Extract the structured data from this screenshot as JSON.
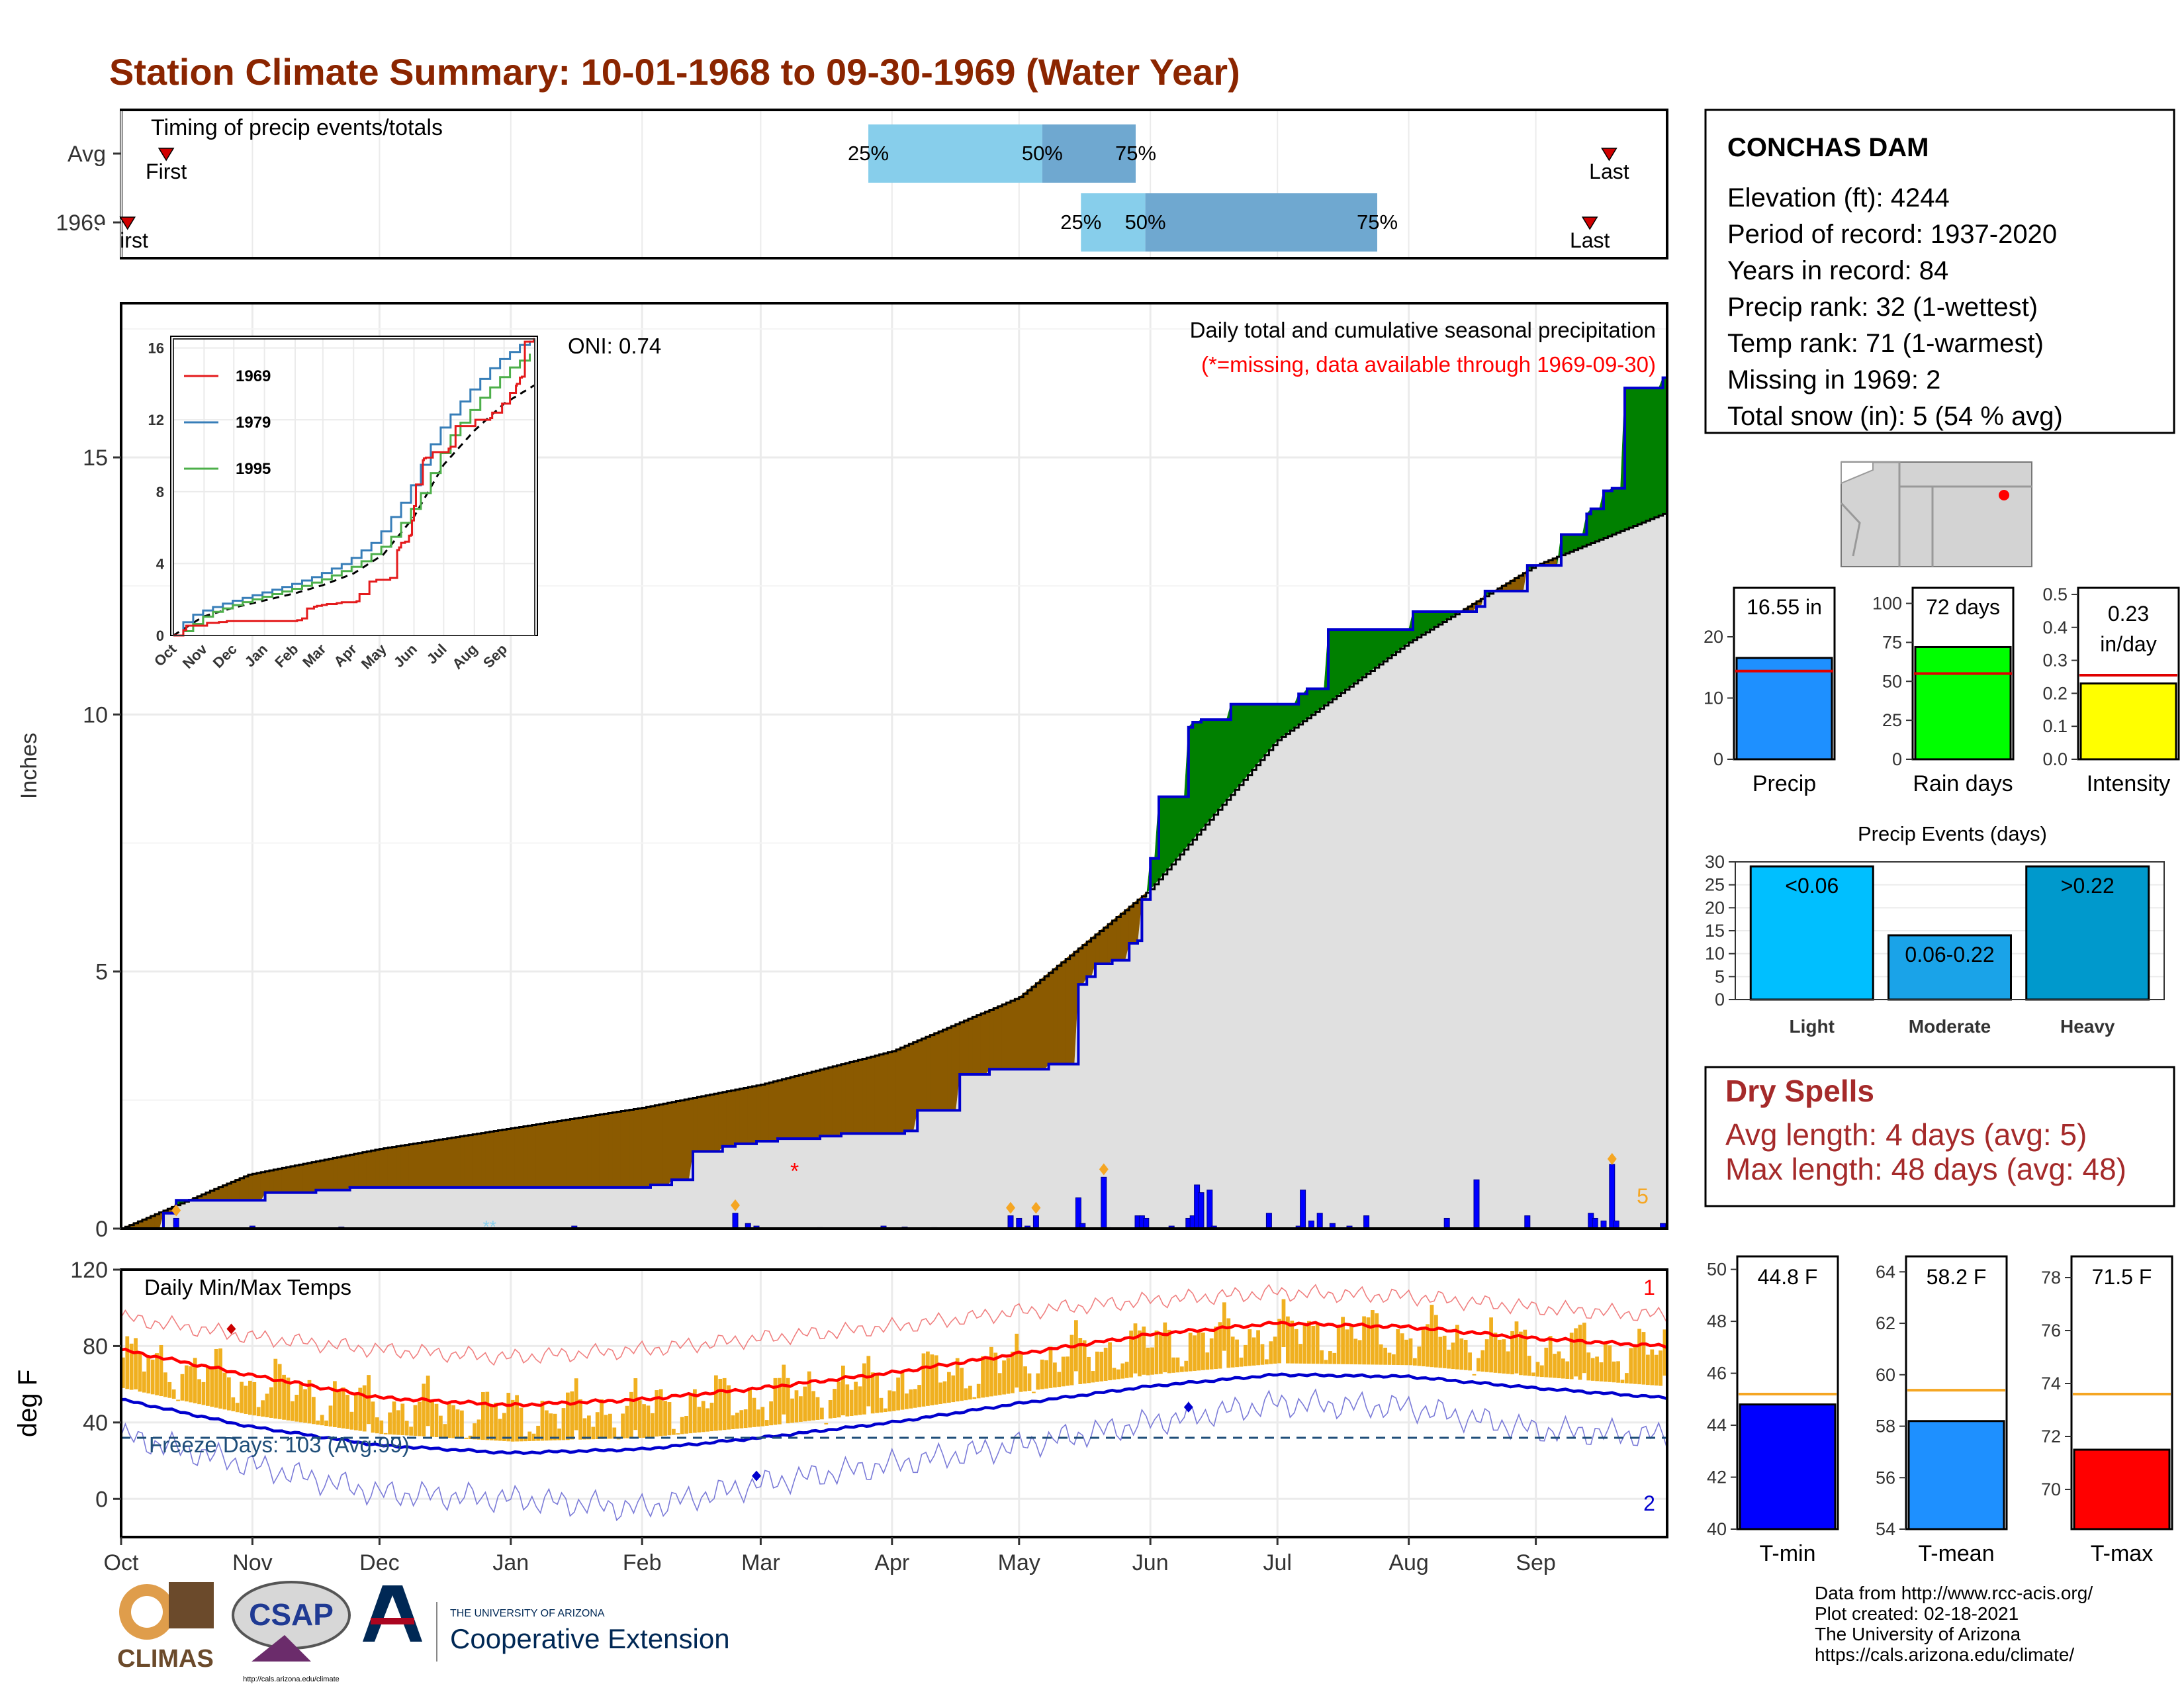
{
  "title": "Station Climate Summary: 10-01-1968 to 09-30-1969 (Water Year)",
  "colors": {
    "title": "#8b2500",
    "dry_spells": "#a52a2a",
    "cum_obs": "#0000cd",
    "above_avg": "#008000",
    "below_avg": "#8b5a00",
    "avg_area": "#e0e0e0",
    "tmin": "#0000cd",
    "tmax": "#ff0000",
    "temp_bars": "#f0b020",
    "q_light": "#87ceeb",
    "q_dark": "#6fa8d0"
  },
  "timing": {
    "label": "Timing of precip events/totals",
    "rows": [
      {
        "name": "Avg",
        "first_label": "First",
        "last_label": "Last",
        "first": 0.7,
        "q25": 11.6,
        "q50": 14.3,
        "q75": 15.75,
        "last": 23.1
      },
      {
        "name": "1969",
        "first_label": "First",
        "last_label": "Last",
        "first": 0.1,
        "q25": 14.9,
        "q50": 15.9,
        "q75": 19.5,
        "last": 22.8
      }
    ]
  },
  "station": {
    "name": "CONCHAS DAM",
    "lines": [
      "Elevation (ft): 4244",
      "Period of record: 1937-2020",
      "Years in record: 84",
      "Precip rank: 32 (1-wettest)",
      "Temp rank: 71 (1-warmest)",
      "Missing in 1969: 2",
      "Total snow (in): 5 (54 % avg)"
    ]
  },
  "precip_panel": {
    "ylabel": "Inches",
    "caption": "Daily total and cumulative seasonal precipitation",
    "subcaption": "(*=missing, data available through 1969-09-30)",
    "oni": "ONI: 0.74",
    "snow_total": "5"
  },
  "inset": {
    "yticks": [
      "0",
      "4",
      "8",
      "12",
      "16"
    ],
    "months": [
      "Oct",
      "Nov",
      "Dec",
      "Jan",
      "Feb",
      "Mar",
      "Apr",
      "May",
      "Jun",
      "Jul",
      "Aug",
      "Sep"
    ],
    "legend": [
      {
        "name": "1969",
        "color": "#e41a1c"
      },
      {
        "name": "1979",
        "color": "#377eb8"
      },
      {
        "name": "1995",
        "color": "#4daf4a"
      }
    ]
  },
  "temp_panel": {
    "ylabel": "deg F",
    "caption": "Daily Min/Max Temps",
    "freeze": "Freeze Days: 103 (Avg:99)",
    "record_high_count": "1",
    "record_low_count": "2"
  },
  "month_labels": [
    "Oct",
    "Nov",
    "Dec",
    "Jan",
    "Feb",
    "Mar",
    "Apr",
    "May",
    "Jun",
    "Jul",
    "Aug",
    "Sep"
  ],
  "chart_data": [
    {
      "type": "area",
      "title": "Daily total and cumulative seasonal precipitation",
      "ylabel": "Inches",
      "ylim": [
        0,
        18
      ],
      "x_unit": "day of water year (Oct 1 = 0)",
      "series": [
        {
          "name": "cumulative",
          "x": [
            0,
            10,
            13,
            34,
            46,
            54,
            115,
            125,
            130,
            135,
            138,
            142,
            145,
            150,
            152,
            155,
            160,
            165,
            170,
            185,
            188,
            198,
            205,
            219,
            225,
            226,
            228,
            230,
            234,
            238,
            240,
            241,
            243,
            245,
            252,
            253,
            255,
            259,
            262,
            275,
            278,
            280,
            285,
            305,
            320,
            322,
            332,
            340,
            346,
            347,
            350,
            352,
            355,
            364
          ],
          "values": [
            0,
            0.3,
            0.55,
            0.7,
            0.75,
            0.8,
            0.8,
            0.85,
            0.95,
            1.5,
            1.5,
            1.6,
            1.65,
            1.7,
            1.7,
            1.75,
            1.75,
            1.8,
            1.85,
            1.9,
            2.3,
            3.0,
            3.1,
            3.2,
            3.2,
            4.75,
            4.9,
            5.15,
            5.22,
            5.55,
            5.6,
            6.4,
            7.2,
            8.4,
            9.75,
            9.85,
            9.9,
            9.9,
            10.2,
            10.2,
            10.4,
            10.5,
            11.65,
            12.0,
            12.1,
            12.4,
            12.9,
            13.5,
            13.9,
            14.0,
            14.35,
            14.4,
            16.35,
            16.55
          ]
        },
        {
          "name": "average",
          "x": [
            0,
            30,
            61,
            92,
            123,
            151,
            182,
            212,
            243,
            273,
            304,
            334,
            364
          ],
          "values": [
            0,
            1.05,
            1.55,
            1.95,
            2.35,
            2.8,
            3.45,
            4.5,
            6.6,
            9.5,
            11.4,
            12.9,
            13.9
          ]
        }
      ],
      "daily_precip": [
        [
          13,
          0.2
        ],
        [
          31,
          0.05
        ],
        [
          52,
          0.03
        ],
        [
          107,
          0.05
        ],
        [
          145,
          0.3
        ],
        [
          148,
          0.1
        ],
        [
          150,
          0.05
        ],
        [
          165,
          0.02
        ],
        [
          180,
          0.05
        ],
        [
          185,
          0.03
        ],
        [
          192,
          0.02
        ],
        [
          205,
          0.01
        ],
        [
          210,
          0.25
        ],
        [
          212,
          0.2
        ],
        [
          214,
          0.05
        ],
        [
          216,
          0.25
        ],
        [
          226,
          0.6
        ],
        [
          227,
          0.1
        ],
        [
          232,
          1.0
        ],
        [
          233,
          0.02
        ],
        [
          240,
          0.25
        ],
        [
          241,
          0.25
        ],
        [
          242,
          0.2
        ],
        [
          248,
          0.05
        ],
        [
          252,
          0.2
        ],
        [
          253,
          0.25
        ],
        [
          254,
          0.85
        ],
        [
          255,
          0.7
        ],
        [
          257,
          0.75
        ],
        [
          258,
          0.05
        ],
        [
          271,
          0.3
        ],
        [
          278,
          0.05
        ],
        [
          279,
          0.75
        ],
        [
          281,
          0.15
        ],
        [
          283,
          0.3
        ],
        [
          286,
          0.1
        ],
        [
          290,
          0.05
        ],
        [
          294,
          0.25
        ],
        [
          313,
          0.2
        ],
        [
          320,
          0.95
        ],
        [
          332,
          0.25
        ],
        [
          347,
          0.3
        ],
        [
          348,
          0.2
        ],
        [
          350,
          0.15
        ],
        [
          352,
          1.25
        ],
        [
          353,
          0.15
        ],
        [
          364,
          0.1
        ]
      ]
    },
    {
      "type": "line",
      "title": "Daily Min/Max Temps",
      "ylabel": "deg F",
      "ylim": [
        -20,
        120
      ],
      "x_unit": "day of water year (Oct 1 = 0)",
      "series": [
        {
          "name": "avg max",
          "x": [
            0,
            30,
            61,
            92,
            123,
            151,
            182,
            212,
            243,
            273,
            304,
            334,
            364
          ],
          "values": [
            78,
            65,
            53,
            49,
            52,
            58,
            66,
            76,
            86,
            92,
            90,
            84,
            80
          ]
        },
        {
          "name": "avg min",
          "x": [
            0,
            30,
            61,
            92,
            123,
            151,
            182,
            212,
            243,
            273,
            304,
            334,
            364
          ],
          "values": [
            52,
            38,
            28,
            24,
            26,
            32,
            40,
            50,
            59,
            65,
            64,
            58,
            53
          ]
        },
        {
          "name": "record max",
          "x": [
            0,
            30,
            61,
            92,
            123,
            151,
            182,
            212,
            243,
            273,
            304,
            334,
            364
          ],
          "values": [
            95,
            85,
            78,
            74,
            78,
            84,
            90,
            98,
            104,
            108,
            106,
            100,
            96
          ]
        },
        {
          "name": "record min",
          "x": [
            0,
            30,
            61,
            92,
            123,
            151,
            182,
            212,
            243,
            273,
            304,
            334,
            364
          ],
          "values": [
            33,
            18,
            3,
            0,
            -5,
            8,
            18,
            28,
            40,
            50,
            48,
            36,
            33
          ]
        }
      ],
      "freeze_line": 32
    },
    {
      "type": "bar",
      "title": "Precip",
      "categories": [
        "Precip"
      ],
      "values": [
        16.55
      ],
      "average": 14.4,
      "ylim": [
        0,
        28
      ],
      "data_label": "16.55 in",
      "yticks": [
        0,
        10,
        20
      ]
    },
    {
      "type": "bar",
      "title": "Rain days",
      "categories": [
        "Rain days"
      ],
      "values": [
        72
      ],
      "average": 55,
      "ylim": [
        0,
        110
      ],
      "data_label": "72 days",
      "yticks": [
        0,
        25,
        50,
        75,
        100
      ]
    },
    {
      "type": "bar",
      "title": "Intensity",
      "categories": [
        "Intensity"
      ],
      "values": [
        0.23
      ],
      "average": 0.255,
      "ylim": [
        0,
        0.52
      ],
      "data_label": "0.23 in/day",
      "yticks": [
        0.0,
        0.1,
        0.2,
        0.3,
        0.4,
        0.5
      ]
    },
    {
      "type": "bar",
      "title": "Precip Events (days)",
      "categories": [
        "Light",
        "Moderate",
        "Heavy"
      ],
      "bar_labels": [
        "<0.06",
        "0.06-0.22",
        ">0.22"
      ],
      "values": [
        29,
        14,
        29
      ],
      "ylim": [
        0,
        30
      ],
      "yticks": [
        0,
        5,
        10,
        15,
        20,
        25,
        30
      ]
    },
    {
      "type": "bar",
      "title": "T-min",
      "categories": [
        "T-min"
      ],
      "values": [
        44.8
      ],
      "average": 45.2,
      "ylim": [
        40,
        50.5
      ],
      "data_label": "44.8 F",
      "yticks": [
        40,
        42,
        44,
        46,
        48,
        50
      ]
    },
    {
      "type": "bar",
      "title": "T-mean",
      "categories": [
        "T-mean"
      ],
      "values": [
        58.2
      ],
      "average": 59.4,
      "ylim": [
        54,
        64.6
      ],
      "data_label": "58.2 F",
      "yticks": [
        54,
        56,
        58,
        60,
        62,
        64
      ]
    },
    {
      "type": "bar",
      "title": "T-max",
      "categories": [
        "T-max"
      ],
      "values": [
        71.5
      ],
      "average": 73.6,
      "ylim": [
        68.5,
        78.8
      ],
      "data_label": "71.5 F",
      "yticks": [
        70,
        72,
        74,
        76,
        78
      ]
    }
  ],
  "dry_spells": {
    "title": "Dry Spells",
    "line1": "Avg length: 4 days (avg: 5)",
    "line2": "Max length: 48 days (avg: 48)"
  },
  "footer": {
    "lines": [
      "Data from http://www.rcc-acis.org/",
      "Plot created: 02-18-2021",
      "The University of Arizona",
      "https://cals.arizona.edu/climate/"
    ],
    "logos": {
      "climas": "CLIMAS",
      "csap": "CSAP",
      "csap_url": "http://cals.arizona.edu/climate",
      "ua_top": "THE UNIVERSITY OF ARIZONA",
      "ua_bottom": "Cooperative Extension"
    }
  }
}
